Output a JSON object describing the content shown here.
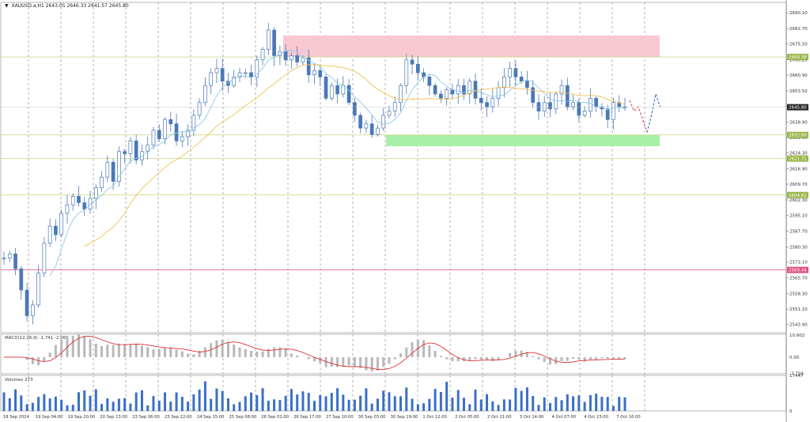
{
  "header": {
    "symbol": "XAUUSD.a,H1",
    "ohlc": "2643.05 2646.33 2641.57 2645.80"
  },
  "colors": {
    "background": "#ffffff",
    "candle": "#4a78b8",
    "ma_fast": "#8fc8e8",
    "ma_slow": "#f0c050",
    "resistance_zone": "#f8c8d0",
    "support_zone": "#a8f0a8",
    "level_line": "#c8d480",
    "level_line_red": "#e05080",
    "macd_signal": "#e03030",
    "macd_hist": "#b8b8b8",
    "volume": "#3a6fc8",
    "forecast_down": "#e05070",
    "forecast_up": "#4a78b8",
    "grid": "#666666"
  },
  "chart_data": [
    {
      "type": "candlestick",
      "id": "price",
      "title": "XAUUSD.a,H1",
      "ylim": [
        2540,
        2695
      ],
      "y_ticks": [
        "2690.10",
        "2682.70",
        "2675.50",
        "2668.20",
        "2660.90",
        "2653.50",
        "2646.20",
        "2638.90",
        "2631.60",
        "2624.30",
        "2616.90",
        "2609.70",
        "2602.30",
        "2595.10",
        "2587.70",
        "2580.30",
        "2573.10",
        "2565.70",
        "2558.30",
        "2551.10",
        "2543.90"
      ],
      "x_ticks": [
        "18 Sep 2024",
        "19 Sep 04:00",
        "19 Sep 20:00",
        "20 Sep 13:00",
        "23 Sep 06:00",
        "23 Sep 22:00",
        "24 Sep 15:00",
        "25 Sep 08:00",
        "26 Sep 01:00",
        "26 Sep 17:00",
        "27 Sep 10:00",
        "30 Sep 03:00",
        "30 Sep 19:00",
        "1 Oct 12:00",
        "2 Oct 05:00",
        "2 Oct 21:00",
        "3 Oct 14:00",
        "4 Oct 07:00",
        "4 Oct 23:00",
        "7 Oct 16:00"
      ],
      "current_price": "2645.80",
      "level_labels": [
        "2669.38",
        "2632.80",
        "2621.71",
        "2604.61",
        "2569.44"
      ],
      "levels": [
        2669.38,
        2632.8,
        2621.71,
        2604.61,
        2569.44
      ],
      "resistance_zone": [
        2669.38,
        2679.5
      ],
      "support_zone": [
        2627.5,
        2632.8
      ],
      "close_path": [
        2575,
        2577,
        2570,
        2560,
        2548,
        2553,
        2568,
        2582,
        2590,
        2586,
        2596,
        2600,
        2604,
        2601,
        2598,
        2603,
        2608,
        2613,
        2620,
        2611,
        2625,
        2624,
        2630,
        2621,
        2625,
        2628,
        2635,
        2631,
        2640,
        2638,
        2630,
        2632,
        2635,
        2642,
        2648,
        2656,
        2662,
        2664,
        2658,
        2656,
        2660,
        2662,
        2662,
        2660,
        2668,
        2673,
        2682,
        2670,
        2672,
        2668,
        2670,
        2667,
        2669,
        2661,
        2663,
        2660,
        2650,
        2656,
        2652,
        2656,
        2648,
        2642,
        2636,
        2638,
        2633,
        2636,
        2642,
        2644,
        2648,
        2656,
        2668,
        2666,
        2662,
        2660,
        2656,
        2652,
        2650,
        2654,
        2652,
        2656,
        2652,
        2658,
        2650,
        2648,
        2646,
        2650,
        2655,
        2660,
        2664,
        2660,
        2658,
        2655,
        2648,
        2644,
        2648,
        2645,
        2652,
        2656,
        2646,
        2648,
        2642,
        2644,
        2650,
        2646,
        2645,
        2640,
        2648,
        2646,
        2645.8
      ],
      "forecast": [
        2649,
        2644,
        2646,
        2640,
        2634,
        2642,
        2652,
        2646
      ]
    },
    {
      "type": "histogram+line",
      "id": "macd",
      "title": "MACD(12,26,9) -1.741 -2.065",
      "label": "MACD(12,26,9) -1.741 -2.065",
      "ylim": [
        -8,
        11
      ],
      "y_ticks": [
        "10.602",
        "0.00",
        "-7.759"
      ]
    },
    {
      "type": "bar",
      "id": "volume",
      "title": "Volumes 273",
      "label": "Volumes 273",
      "ylim": [
        0,
        17447
      ],
      "y_ticks": [
        "17447",
        "0"
      ]
    }
  ]
}
